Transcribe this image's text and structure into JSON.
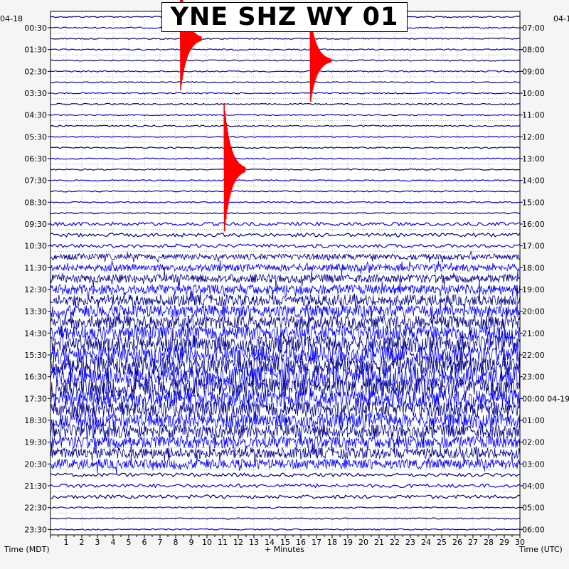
{
  "chart_data": {
    "type": "heliplot",
    "title": "YNE SHZ WY 01",
    "left_date": "04-18",
    "right_date": "04-1",
    "right_date_alt": "04-19",
    "xlabel": "+ Minutes",
    "left_axis_label": "Time (MDT)",
    "right_axis_label": "Time (UTC)",
    "x_ticks": [
      "1",
      "2",
      "3",
      "4",
      "5",
      "6",
      "7",
      "8",
      "9",
      "10",
      "11",
      "12",
      "13",
      "14",
      "15",
      "16",
      "17",
      "18",
      "19",
      "20",
      "21",
      "22",
      "23",
      "24",
      "25",
      "26",
      "27",
      "28",
      "29",
      "30"
    ],
    "xlim": [
      0,
      30
    ],
    "left_times": [
      "00:30",
      "01:30",
      "02:30",
      "03:30",
      "04:30",
      "05:30",
      "06:30",
      "07:30",
      "08:30",
      "09:30",
      "10:30",
      "11:30",
      "12:30",
      "13:30",
      "14:30",
      "15:30",
      "16:30",
      "17:30",
      "18:30",
      "19:30",
      "20:30",
      "21:30",
      "22:30",
      "23:30"
    ],
    "right_times": [
      "07:00",
      "08:00",
      "09:00",
      "10:00",
      "11:00",
      "12:00",
      "13:00",
      "14:00",
      "15:00",
      "16:00",
      "17:00",
      "18:00",
      "19:00",
      "20:00",
      "21:00",
      "22:00",
      "23:00",
      "00:00 04-19",
      "01:00",
      "02:00",
      "03:00",
      "04:00",
      "05:00",
      "06:00"
    ],
    "trace_colors": [
      "#00008b",
      "#0000ff"
    ],
    "event_color": "#ff0000",
    "events": [
      {
        "line": 2,
        "minute": 8.3,
        "amplitude": 10
      },
      {
        "line": 4,
        "minute": 16.6,
        "amplitude": 8
      },
      {
        "line": 14,
        "minute": 11.1,
        "amplitude": 12
      }
    ]
  }
}
